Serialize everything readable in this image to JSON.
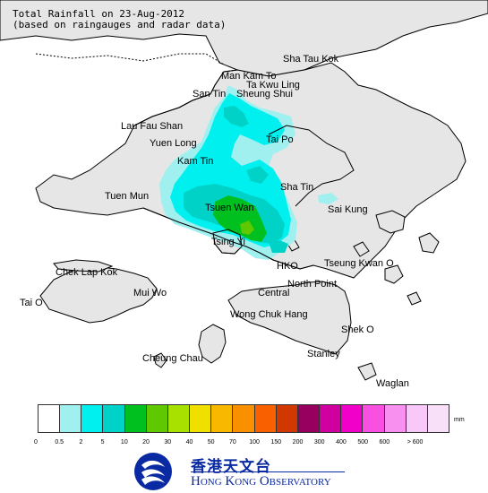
{
  "title": {
    "line1": "Total Rainfall on 23-Aug-2012",
    "line2": "(based on raingauges and radar data)"
  },
  "places": [
    {
      "key": "sha_tau_kok",
      "label": "Sha Tau Kok"
    },
    {
      "key": "man_kam_to",
      "label": "Man Kam To"
    },
    {
      "key": "ta_kwu_ling",
      "label": "Ta Kwu Ling"
    },
    {
      "key": "san_tin",
      "label": "San Tin"
    },
    {
      "key": "sheung_shui",
      "label": "Sheung Shui"
    },
    {
      "key": "lau_fau_shan",
      "label": "Lau Fau Shan"
    },
    {
      "key": "yuen_long",
      "label": "Yuen Long"
    },
    {
      "key": "tai_po",
      "label": "Tai Po"
    },
    {
      "key": "kam_tin",
      "label": "Kam Tin"
    },
    {
      "key": "tuen_mun",
      "label": "Tuen Mun"
    },
    {
      "key": "sha_tin",
      "label": "Sha Tin"
    },
    {
      "key": "tsuen_wan",
      "label": "Tsuen Wan"
    },
    {
      "key": "sai_kung",
      "label": "Sai Kung"
    },
    {
      "key": "tsing_yi",
      "label": "Tsing Yi"
    },
    {
      "key": "chek_lap_kok",
      "label": "Chek Lap Kok"
    },
    {
      "key": "hko",
      "label": "HKO"
    },
    {
      "key": "tseung_kwan_o",
      "label": "Tseung Kwan O"
    },
    {
      "key": "mui_wo",
      "label": "Mui Wo"
    },
    {
      "key": "north_point",
      "label": "North Point"
    },
    {
      "key": "central",
      "label": "Central"
    },
    {
      "key": "tai_o",
      "label": "Tai O"
    },
    {
      "key": "wong_chuk_hang",
      "label": "Wong Chuk Hang"
    },
    {
      "key": "shek_o",
      "label": "Shek O"
    },
    {
      "key": "cheung_chau",
      "label": "Cheung Chau"
    },
    {
      "key": "stanley",
      "label": "Stanley"
    },
    {
      "key": "waglan",
      "label": "Waglan"
    }
  ],
  "legend": {
    "unit": "mm",
    "colors": [
      "#ffffff",
      "#a0f0f0",
      "#00f0f0",
      "#00d2c8",
      "#00c020",
      "#60c800",
      "#a8e000",
      "#f0e000",
      "#f8b800",
      "#f89000",
      "#f86000",
      "#d03800",
      "#980060",
      "#d000a0",
      "#f000c8",
      "#f850e0",
      "#f890f0",
      "#f8c8f8",
      "#f8e0f8"
    ],
    "ticks": [
      "0",
      "0.5",
      "2",
      "5",
      "10",
      "20",
      "30",
      "40",
      "50",
      "70",
      "100",
      "150",
      "200",
      "300",
      "400",
      "500",
      "600",
      "> 600"
    ]
  },
  "org": {
    "name_cn": "香港天文台",
    "name_en": "Hong Kong Observatory"
  }
}
